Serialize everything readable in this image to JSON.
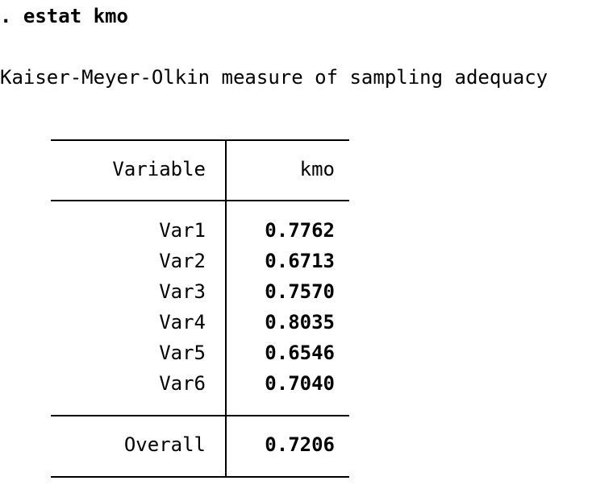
{
  "command": {
    "prompt": ".",
    "text": "estat kmo"
  },
  "output_title": "Kaiser-Meyer-Olkin measure of sampling adequacy",
  "table": {
    "headers": {
      "variable": "Variable",
      "kmo": "kmo"
    },
    "rows": [
      {
        "variable": "Var1",
        "kmo": "0.7762"
      },
      {
        "variable": "Var2",
        "kmo": "0.6713"
      },
      {
        "variable": "Var3",
        "kmo": "0.7570"
      },
      {
        "variable": "Var4",
        "kmo": "0.8035"
      },
      {
        "variable": "Var5",
        "kmo": "0.6546"
      },
      {
        "variable": "Var6",
        "kmo": "0.7040"
      }
    ],
    "overall": {
      "label": "Overall",
      "kmo": "0.7206"
    }
  }
}
